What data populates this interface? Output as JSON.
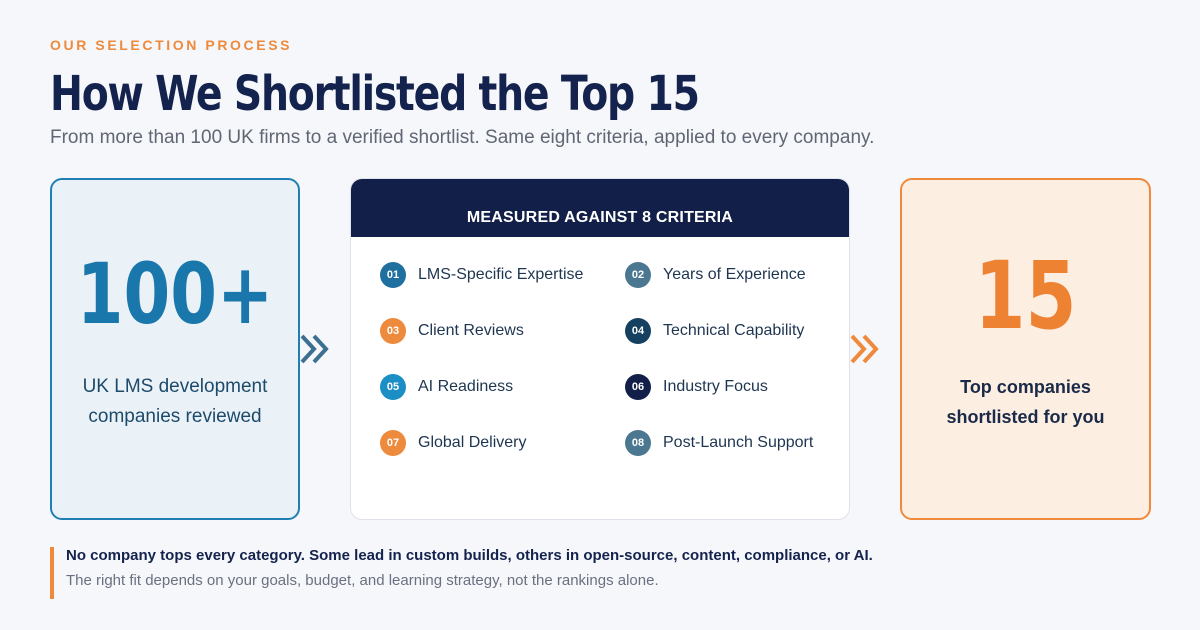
{
  "header": {
    "eyebrow": "OUR SELECTION PROCESS",
    "title": "How We Shortlisted the Top 15",
    "subtitle": "From more than 100 UK firms to a verified shortlist. Same eight criteria, applied to every company."
  },
  "left_card": {
    "value": "100+",
    "caption_line1": "UK LMS development",
    "caption_line2": "companies reviewed",
    "color": "#1a77ac"
  },
  "center_card": {
    "title": "MEASURED AGAINST 8 CRITERIA",
    "criteria": [
      {
        "num": "01",
        "label": "LMS-Specific Expertise",
        "color": "#1f6f9f"
      },
      {
        "num": "02",
        "label": "Years of Experience",
        "color": "#4b7890"
      },
      {
        "num": "03",
        "label": "Client Reviews",
        "color": "#ee8a3c"
      },
      {
        "num": "04",
        "label": "Technical Capability",
        "color": "#15405f"
      },
      {
        "num": "05",
        "label": "AI Readiness",
        "color": "#1b8ec5"
      },
      {
        "num": "06",
        "label": "Industry Focus",
        "color": "#121f48"
      },
      {
        "num": "07",
        "label": "Global Delivery",
        "color": "#ee8a3c"
      },
      {
        "num": "08",
        "label": "Post-Launch Support",
        "color": "#4b7890"
      }
    ]
  },
  "right_card": {
    "value": "15",
    "caption_line1": "Top companies",
    "caption_line2": "shortlisted for you",
    "color": "#ee8233"
  },
  "footer": {
    "note_bold": "No company tops every category. Some lead in custom builds, others in open-source, content, compliance, or AI.",
    "note_regular": "The right fit depends on your goals, budget, and learning strategy, not the rankings alone."
  },
  "icons": {
    "arrow_left": "double-chevron-right-icon",
    "arrow_right": "double-chevron-right-icon"
  }
}
